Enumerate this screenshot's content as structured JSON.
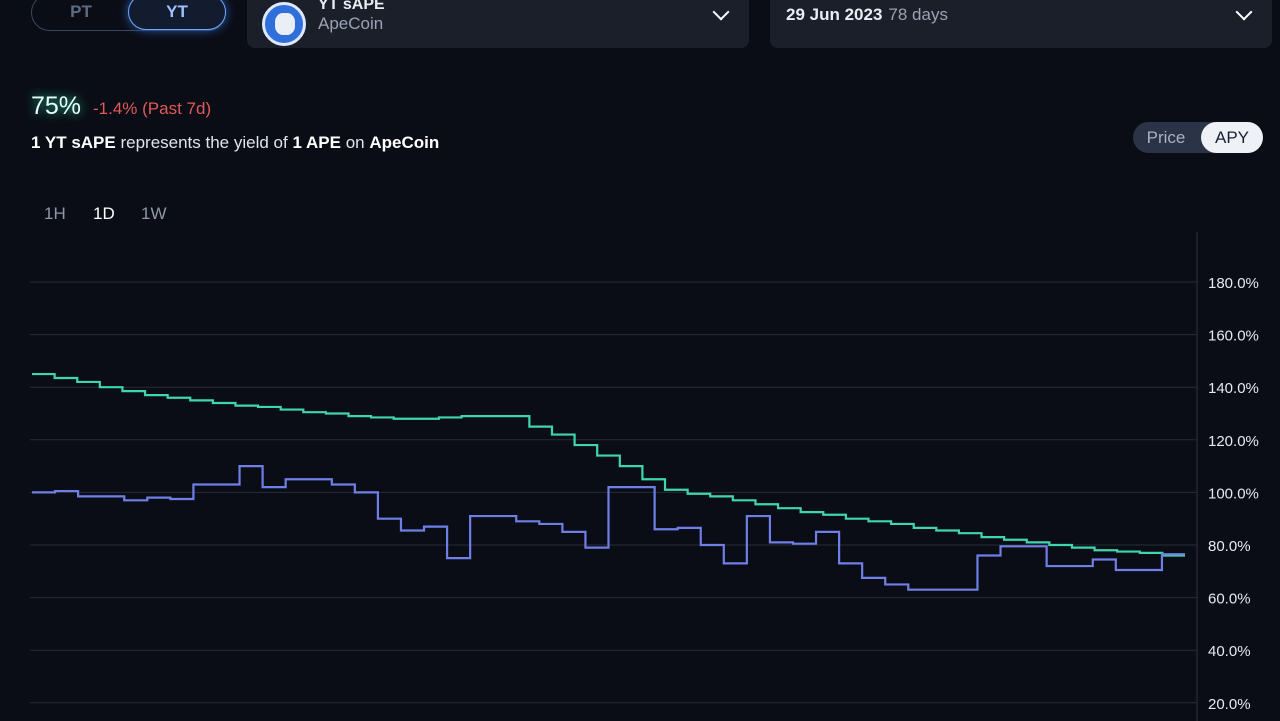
{
  "token_type_toggle": {
    "options": [
      "PT",
      "YT"
    ],
    "selected": "YT"
  },
  "market_select": {
    "name": "YT sAPE",
    "subtitle": "ApeCoin",
    "icon": "apecoin-logo"
  },
  "maturity_select": {
    "date": "29 Jun 2023",
    "days": "78 days"
  },
  "summary": {
    "apy": "75%",
    "change": "-1.4% (Past 7d)",
    "change_color": "#e05a5a",
    "desc": {
      "a": "1 YT sAPE",
      "b": " represents the yield of ",
      "c": "1 APE",
      "d": " on ",
      "e": "ApeCoin"
    }
  },
  "view_toggle": {
    "options": [
      "Price",
      "APY"
    ],
    "selected": "APY"
  },
  "timeframes": {
    "items": [
      "1H",
      "1D",
      "1W"
    ],
    "selected": "1D"
  },
  "chart_data": {
    "type": "line",
    "step": true,
    "ylim": [
      20,
      180
    ],
    "yticks": [
      "20.0%",
      "40.0%",
      "60.0%",
      "80.0%",
      "100.0%",
      "120.0%",
      "140.0%",
      "160.0%",
      "180.0%"
    ],
    "ytick_values": [
      20,
      40,
      60,
      80,
      100,
      120,
      140,
      160,
      180
    ],
    "grid": true,
    "series": [
      {
        "color": "#3fd6ad",
        "values": [
          145,
          143.5,
          142,
          140,
          138.5,
          137,
          136,
          135,
          134,
          133,
          132.5,
          131.5,
          130.5,
          130,
          129,
          128.5,
          128,
          128,
          128.5,
          129,
          129,
          129,
          125,
          122,
          118,
          114,
          110,
          105,
          101,
          99.5,
          98.5,
          97,
          95.5,
          94,
          92.5,
          91.5,
          90,
          89,
          88,
          86.5,
          85.5,
          84.5,
          83,
          82,
          81,
          80,
          79,
          78,
          77.5,
          77,
          76
        ]
      },
      {
        "color": "#6f7fe6",
        "values": [
          100,
          100.5,
          98.5,
          98.5,
          97,
          98,
          97.5,
          103,
          103,
          110,
          102,
          105,
          105,
          103,
          100,
          90,
          85.5,
          87,
          75,
          91,
          91,
          89,
          88,
          85,
          79,
          102,
          102,
          86,
          86.5,
          80,
          73,
          91,
          81,
          80.5,
          85,
          73,
          67.5,
          65,
          63,
          63,
          63,
          76,
          79.5,
          79.5,
          72,
          72,
          74.5,
          70.5,
          70.5,
          76.5
        ]
      }
    ]
  }
}
